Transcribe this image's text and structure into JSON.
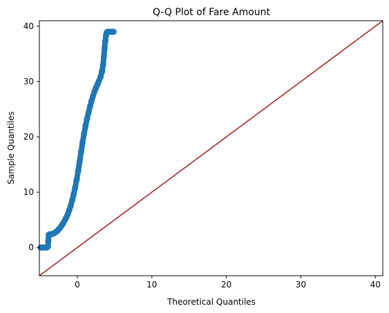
{
  "chart_data": {
    "type": "scatter",
    "title": "Q-Q Plot of Fare Amount",
    "xlabel": "Theoretical Quantiles",
    "ylabel": "Sample Quantiles",
    "xlim": [
      -5.1,
      41
    ],
    "ylim": [
      -5.1,
      41
    ],
    "xticks": [
      0,
      10,
      20,
      30,
      40
    ],
    "yticks": [
      0,
      10,
      20,
      30,
      40
    ],
    "grid": false,
    "series": [
      {
        "marker_color": "#1f77b4",
        "points": [
          [
            -4.9,
            0
          ],
          [
            -4.7,
            0
          ],
          [
            -4.5,
            0
          ],
          [
            -4.3,
            0
          ],
          [
            -4.1,
            0
          ],
          [
            -3.95,
            0.2
          ],
          [
            -3.9,
            1.2
          ],
          [
            -3.85,
            2.3
          ],
          [
            -3.7,
            2.4
          ],
          [
            -3.5,
            2.4
          ],
          [
            -3.3,
            2.5
          ],
          [
            -3.1,
            2.6
          ],
          [
            -2.9,
            2.8
          ],
          [
            -2.7,
            3.0
          ],
          [
            -2.5,
            3.3
          ],
          [
            -2.3,
            3.6
          ],
          [
            -2.1,
            4.0
          ],
          [
            -1.9,
            4.4
          ],
          [
            -1.7,
            4.9
          ],
          [
            -1.5,
            5.4
          ],
          [
            -1.3,
            6.0
          ],
          [
            -1.1,
            6.7
          ],
          [
            -0.9,
            7.5
          ],
          [
            -0.7,
            8.5
          ],
          [
            -0.5,
            9.6
          ],
          [
            -0.3,
            10.8
          ],
          [
            -0.1,
            12.2
          ],
          [
            0.1,
            13.8
          ],
          [
            0.3,
            15.5
          ],
          [
            0.5,
            17.3
          ],
          [
            0.7,
            19.0
          ],
          [
            0.9,
            20.6
          ],
          [
            1.1,
            22.0
          ],
          [
            1.3,
            23.3
          ],
          [
            1.5,
            24.4
          ],
          [
            1.7,
            25.5
          ],
          [
            1.9,
            26.5
          ],
          [
            2.1,
            27.4
          ],
          [
            2.3,
            28.2
          ],
          [
            2.5,
            28.9
          ],
          [
            2.7,
            29.5
          ],
          [
            2.9,
            30.1
          ],
          [
            3.1,
            30.8
          ],
          [
            3.3,
            31.8
          ],
          [
            3.45,
            33.0
          ],
          [
            3.55,
            34.5
          ],
          [
            3.65,
            36.0
          ],
          [
            3.75,
            37.3
          ],
          [
            3.85,
            38.4
          ],
          [
            3.95,
            38.9
          ],
          [
            4.1,
            39.0
          ],
          [
            4.3,
            39.0
          ],
          [
            4.5,
            39.0
          ],
          [
            4.7,
            39.0
          ],
          [
            4.85,
            39.0
          ]
        ]
      }
    ],
    "reference_line": {
      "slope": 1,
      "intercept": 0,
      "color": "#a52a2a"
    }
  }
}
